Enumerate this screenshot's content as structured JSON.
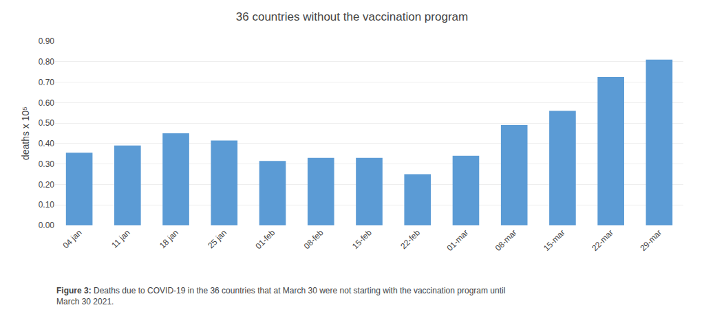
{
  "chart_data": {
    "type": "bar",
    "title": "36 countries without the vaccination program",
    "categories": [
      "04 jan",
      "11 jan",
      "18 jan",
      "25 jan",
      "01-feb",
      "08-feb",
      "15-feb",
      "22-feb",
      "01-mar",
      "08-mar",
      "15-mar",
      "22-mar",
      "29-mar"
    ],
    "values": [
      0.355,
      0.39,
      0.45,
      0.415,
      0.315,
      0.33,
      0.33,
      0.25,
      0.34,
      0.49,
      0.56,
      0.725,
      0.81
    ],
    "color": "#5B9BD5",
    "ylabel": "deaths x 10⁵",
    "ylim": [
      0,
      0.9
    ],
    "yticks": [
      {
        "value": 0.0,
        "label": "0.00"
      },
      {
        "value": 0.1,
        "label": "0.10"
      },
      {
        "value": 0.2,
        "label": "0.20"
      },
      {
        "value": 0.3,
        "label": "0.30"
      },
      {
        "value": 0.4,
        "label": "0.40"
      },
      {
        "value": 0.5,
        "label": "0.50"
      },
      {
        "value": 0.6,
        "label": "0.60"
      },
      {
        "value": 0.7,
        "label": "0.70"
      },
      {
        "value": 0.8,
        "label": "0.80"
      },
      {
        "value": 0.9,
        "label": "0.90"
      }
    ],
    "grid": true,
    "annotations": [
      "Figure 3:",
      " Deaths due to COVID-19 in the 36 countries that at March 30 were not starting with the vaccination program until\nMarch 30 2021."
    ]
  }
}
